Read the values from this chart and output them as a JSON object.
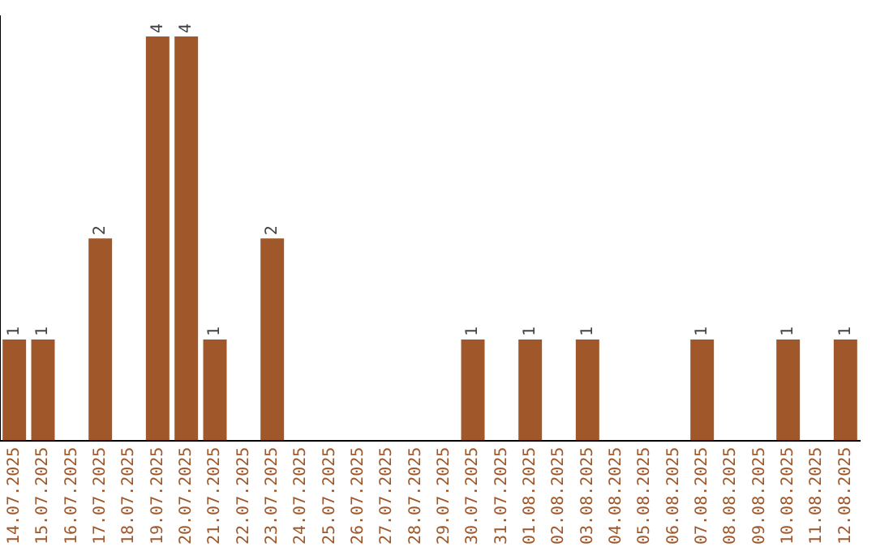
{
  "chart_data": {
    "type": "bar",
    "categories": [
      "14.07.2025",
      "15.07.2025",
      "16.07.2025",
      "17.07.2025",
      "18.07.2025",
      "19.07.2025",
      "20.07.2025",
      "21.07.2025",
      "22.07.2025",
      "23.07.2025",
      "24.07.2025",
      "25.07.2025",
      "26.07.2025",
      "27.07.2025",
      "28.07.2025",
      "29.07.2025",
      "30.07.2025",
      "31.07.2025",
      "01.08.2025",
      "02.08.2025",
      "03.08.2025",
      "04.08.2025",
      "05.08.2025",
      "06.08.2025",
      "07.08.2025",
      "08.08.2025",
      "09.08.2025",
      "10.08.2025",
      "11.08.2025",
      "12.08.2025"
    ],
    "values": [
      1,
      1,
      0,
      2,
      0,
      4,
      4,
      1,
      0,
      2,
      0,
      0,
      0,
      0,
      0,
      0,
      1,
      0,
      1,
      0,
      1,
      0,
      0,
      0,
      1,
      0,
      0,
      1,
      0,
      1
    ],
    "value_labels": [
      "1",
      "1",
      null,
      "2",
      null,
      "4",
      "4",
      "1",
      null,
      "2",
      null,
      null,
      null,
      null,
      null,
      null,
      "1",
      null,
      "1",
      null,
      "1",
      null,
      null,
      null,
      "1",
      null,
      null,
      "1",
      null,
      "1"
    ],
    "color": "#a0582a",
    "ylim": [
      0,
      4.2
    ],
    "tick_labels": "x",
    "grid": false,
    "legend": false
  }
}
